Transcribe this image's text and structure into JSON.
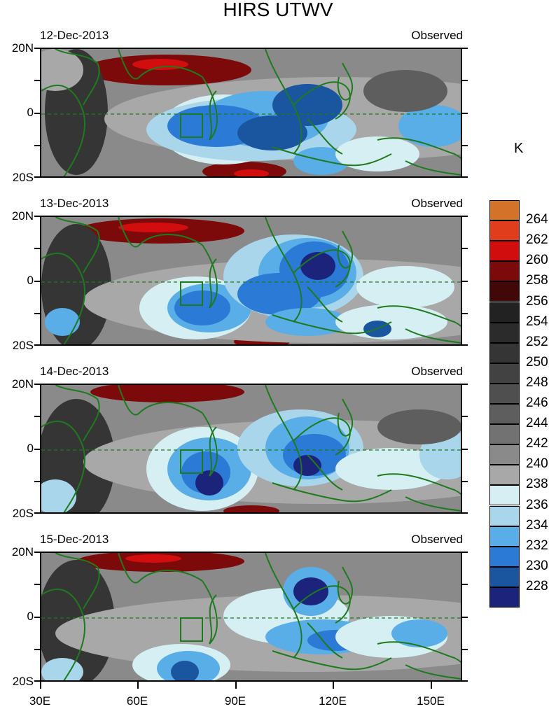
{
  "title": "HIRS UTWV",
  "units": "K",
  "panels": [
    {
      "date": "12-Dec-2013",
      "label": "Observed"
    },
    {
      "date": "13-Dec-2013",
      "label": "Observed"
    },
    {
      "date": "14-Dec-2013",
      "label": "Observed"
    },
    {
      "date": "15-Dec-2013",
      "label": "Observed"
    }
  ],
  "lat_labels": [
    "20N",
    "0",
    "20S"
  ],
  "lon_labels": [
    "30E",
    "60E",
    "90E",
    "120E",
    "150E"
  ],
  "colorbar": {
    "levels": [
      "264",
      "262",
      "260",
      "258",
      "256",
      "254",
      "252",
      "250",
      "248",
      "246",
      "244",
      "242",
      "240",
      "238",
      "236",
      "234",
      "232",
      "230",
      "228"
    ],
    "colors": [
      "#d4722a",
      "#e03d1c",
      "#d20d0d",
      "#7d0a0a",
      "#420707",
      "#222222",
      "#2b2b2b",
      "#353535",
      "#424242",
      "#4f4f4f",
      "#5e5e5e",
      "#727272",
      "#8a8a8a",
      "#a8a8a8",
      "#d6eff2",
      "#a9d6ea",
      "#59aee8",
      "#2b7ad6",
      "#1a56a0",
      "#1c237a"
    ]
  },
  "colors": {
    "coastline": "#1e7a1e",
    "box": "#1e7a1e"
  }
}
